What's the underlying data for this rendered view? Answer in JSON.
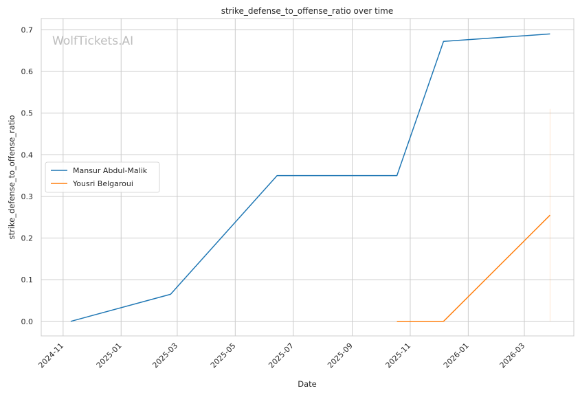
{
  "chart_data": {
    "type": "line",
    "title": "strike_defense_to_offense_ratio over time",
    "xlabel": "Date",
    "ylabel": "strike_defense_to_offense_ratio",
    "watermark": "WolfTickets.AI",
    "x_range": [
      "2024-10-09",
      "2026-04-22"
    ],
    "ylim": [
      -0.035,
      0.727
    ],
    "x_ticks": [
      {
        "date": "2024-11-01",
        "label": "2024-11"
      },
      {
        "date": "2025-01-01",
        "label": "2025-01"
      },
      {
        "date": "2025-03-01",
        "label": "2025-03"
      },
      {
        "date": "2025-05-01",
        "label": "2025-05"
      },
      {
        "date": "2025-07-01",
        "label": "2025-07"
      },
      {
        "date": "2025-09-01",
        "label": "2025-09"
      },
      {
        "date": "2025-11-01",
        "label": "2025-11"
      },
      {
        "date": "2026-01-01",
        "label": "2026-01"
      },
      {
        "date": "2026-03-01",
        "label": "2026-03"
      }
    ],
    "y_ticks": [
      {
        "value": 0.0,
        "label": "0.0"
      },
      {
        "value": 0.1,
        "label": "0.1"
      },
      {
        "value": 0.2,
        "label": "0.2"
      },
      {
        "value": 0.3,
        "label": "0.3"
      },
      {
        "value": 0.4,
        "label": "0.4"
      },
      {
        "value": 0.5,
        "label": "0.5"
      },
      {
        "value": 0.6,
        "label": "0.6"
      },
      {
        "value": 0.7,
        "label": "0.7"
      }
    ],
    "grid": true,
    "legend_position": "center-left",
    "series": [
      {
        "name": "Mansur Abdul-Malik",
        "color": "#1f77b4",
        "points": [
          {
            "x": "2024-11-09",
            "y": 0.0
          },
          {
            "x": "2025-02-22",
            "y": 0.065
          },
          {
            "x": "2025-06-14",
            "y": 0.35
          },
          {
            "x": "2025-10-18",
            "y": 0.35
          },
          {
            "x": "2025-12-06",
            "y": 0.672
          },
          {
            "x": "2026-03-28",
            "y": 0.69
          }
        ]
      },
      {
        "name": "Yousri Belgaroui",
        "color": "#ff7f0e",
        "points": [
          {
            "x": "2025-10-18",
            "y": 0.0
          },
          {
            "x": "2025-12-06",
            "y": 0.0
          },
          {
            "x": "2026-03-28",
            "y": 0.255
          }
        ],
        "band": {
          "x": "2026-03-28",
          "low": 0.0,
          "high": 0.51
        }
      }
    ]
  }
}
